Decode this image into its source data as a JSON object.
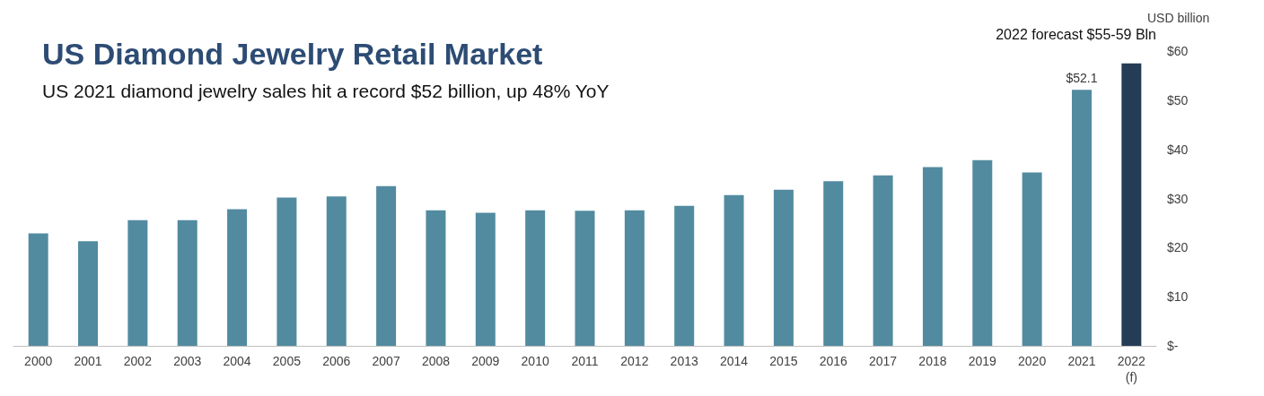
{
  "chart_data": {
    "type": "bar",
    "title": "US Diamond Jewelry Retail Market",
    "subtitle": "US 2021 diamond jewelry sales hit a record $52 billion, up 48% YoY",
    "ylabel": "USD billion",
    "annotations": [
      "2022 forecast $55-59 Bln"
    ],
    "categories": [
      "2000",
      "2001",
      "2002",
      "2003",
      "2004",
      "2005",
      "2006",
      "2007",
      "2008",
      "2009",
      "2010",
      "2011",
      "2012",
      "2013",
      "2014",
      "2015",
      "2016",
      "2017",
      "2018",
      "2019",
      "2020",
      "2021",
      "2022\n(f)"
    ],
    "values": [
      22.9,
      21.3,
      25.6,
      25.6,
      27.8,
      30.2,
      30.4,
      32.5,
      27.6,
      27.1,
      27.6,
      27.5,
      27.6,
      28.5,
      30.7,
      31.8,
      33.5,
      34.7,
      36.4,
      37.8,
      35.3,
      52.1,
      57.5
    ],
    "colors": [
      "#528ba0",
      "#528ba0",
      "#528ba0",
      "#528ba0",
      "#528ba0",
      "#528ba0",
      "#528ba0",
      "#528ba0",
      "#528ba0",
      "#528ba0",
      "#528ba0",
      "#528ba0",
      "#528ba0",
      "#528ba0",
      "#528ba0",
      "#528ba0",
      "#528ba0",
      "#528ba0",
      "#528ba0",
      "#528ba0",
      "#528ba0",
      "#528ba0",
      "#253c56"
    ],
    "value_labels": [
      null,
      null,
      null,
      null,
      null,
      null,
      null,
      null,
      null,
      null,
      null,
      null,
      null,
      null,
      null,
      null,
      null,
      null,
      null,
      null,
      null,
      "$52.1",
      null
    ],
    "ylim": [
      0,
      60
    ],
    "yticks": [
      {
        "value": 0,
        "label": "$-"
      },
      {
        "value": 10,
        "label": "$10"
      },
      {
        "value": 20,
        "label": "$20"
      },
      {
        "value": 30,
        "label": "$30"
      },
      {
        "value": 40,
        "label": "$40"
      },
      {
        "value": 50,
        "label": "$50"
      },
      {
        "value": 60,
        "label": "$60"
      }
    ],
    "grid": false
  }
}
